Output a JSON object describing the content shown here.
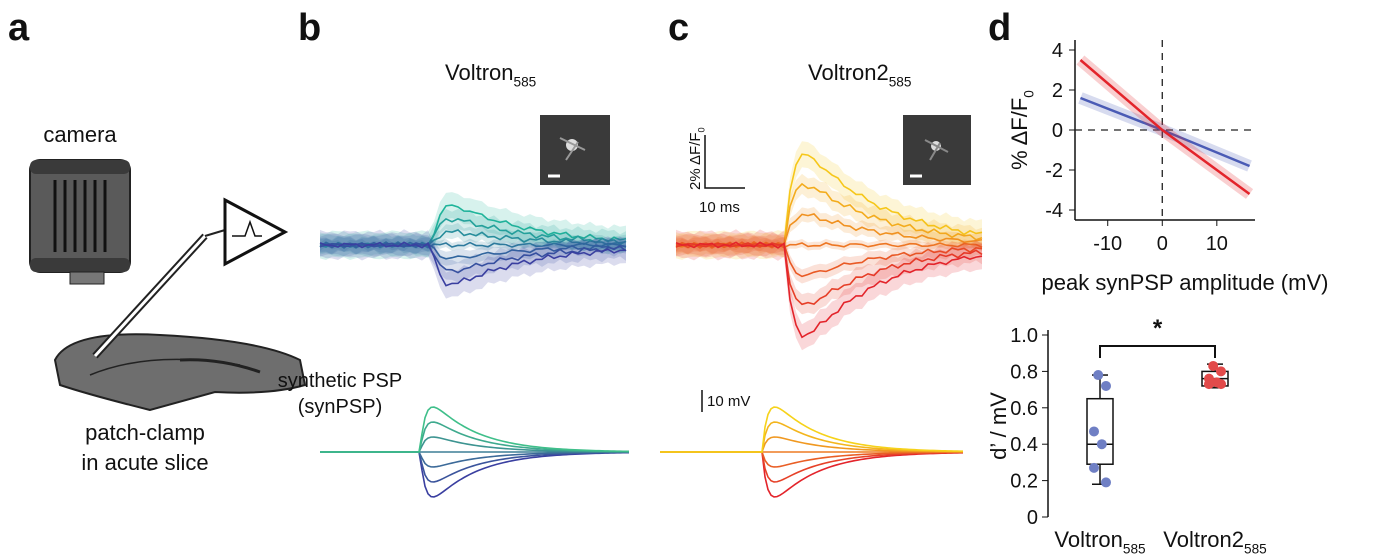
{
  "panels": {
    "a": {
      "label": "a",
      "camera": "camera",
      "caption": [
        "patch-clamp",
        "in acute slice"
      ]
    },
    "b": {
      "label": "b",
      "title": {
        "text": "Voltron",
        "subscript": "585"
      },
      "synpsp_label": [
        "synthetic PSP",
        "(synPSP)"
      ]
    },
    "c": {
      "label": "c",
      "title": {
        "text": "Voltron2",
        "subscript": "585"
      },
      "scale_dff": {
        "text": "2% ΔF/F",
        "subscript": "0"
      },
      "scale_time": "10 ms",
      "scale_mv": "10 mV"
    },
    "d": {
      "label": "d"
    }
  },
  "chart_data": [
    {
      "type": "line",
      "x": [
        -15,
        0,
        16
      ],
      "series": [
        {
          "color": "#4a5bb5",
          "values": [
            1.6,
            0,
            -1.8
          ]
        },
        {
          "color": "#e3242b",
          "values": [
            3.5,
            0,
            -3.2
          ]
        }
      ],
      "xlim": [
        -16,
        17
      ],
      "ylim": [
        -4.5,
        4.5
      ],
      "xticks": [
        -10,
        0,
        10
      ],
      "yticks": [
        -4,
        -2,
        0,
        2,
        4
      ],
      "xlabel": "peak synPSP amplitude (mV)",
      "ylabel": {
        "text": "% ΔF/F",
        "subscript": "0"
      }
    },
    {
      "type": "box",
      "categories": [
        {
          "text": "Voltron",
          "subscript": "585"
        },
        {
          "text": "Voltron2",
          "subscript": "585"
        }
      ],
      "series": [
        {
          "color": "#6f7fc4",
          "min": 0.18,
          "q1": 0.29,
          "median": 0.4,
          "q3": 0.65,
          "max": 0.78,
          "points": [
            0.78,
            0.72,
            0.47,
            0.4,
            0.27,
            0.19
          ]
        },
        {
          "color": "#e24a4a",
          "min": 0.71,
          "q1": 0.72,
          "median": 0.76,
          "q3": 0.8,
          "max": 0.84,
          "points": [
            0.83,
            0.8,
            0.76,
            0.74,
            0.73,
            0.73
          ]
        }
      ],
      "ylim": [
        0,
        1
      ],
      "yticks": [
        0,
        0.2,
        0.4,
        0.6,
        0.8,
        {
          "value": 1,
          "label": "1.0"
        }
      ],
      "ylabel": "d’ / mV",
      "annotation": "*"
    }
  ]
}
